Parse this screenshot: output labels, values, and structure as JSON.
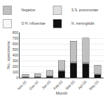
{
  "chart_data": {
    "type": "bar",
    "stacked": true,
    "categories": [
      "Nov-02",
      "Dec-02",
      "Jan-03",
      "Feb-03",
      "Mar-03",
      "Apr-03",
      "May-03"
    ],
    "series": [
      {
        "name": "N. meningitidis",
        "color": "#101010",
        "values": [
          8,
          12,
          25,
          115,
          260,
          250,
          55
        ]
      },
      {
        "name": "O H. influenzae",
        "color": "#f8f8f8",
        "values": [
          2,
          2,
          3,
          6,
          5,
          5,
          3
        ]
      },
      {
        "name": "S S. pneumoniae",
        "color": "#e0e0e0",
        "values": [
          4,
          4,
          8,
          12,
          12,
          18,
          8
        ]
      },
      {
        "name": "Negative",
        "color": "#c0c0c0",
        "values": [
          45,
          55,
          90,
          170,
          370,
          430,
          155
        ]
      }
    ],
    "xlabel": "Month",
    "ylabel": "No. specimens",
    "ylim": [
      0,
      800
    ],
    "yticks": [
      0,
      100,
      200,
      300,
      400,
      500,
      600,
      700,
      800
    ],
    "grid": true,
    "legend": "top"
  }
}
